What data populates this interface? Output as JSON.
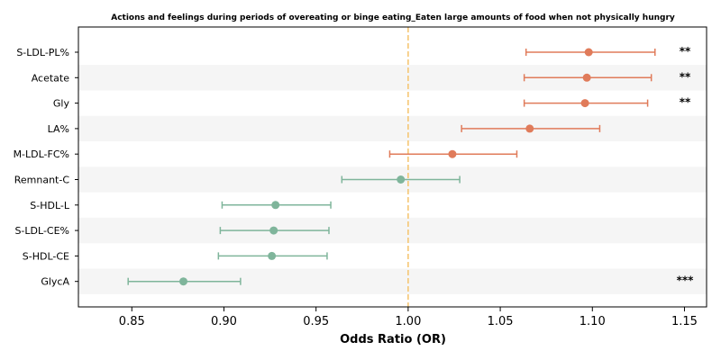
{
  "chart_data": {
    "type": "forest",
    "title": "Actions and feelings during periods of overeating or binge eating_Eaten large amounts of food when not physically hungry",
    "xlabel": "Odds Ratio (OR)",
    "ylabel": "",
    "xlim": [
      0.821,
      1.162
    ],
    "xticks": [
      "0.85",
      "0.90",
      "0.95",
      "1.00",
      "1.05",
      "1.10",
      "1.15"
    ],
    "reference_line": 1.0,
    "colors": {
      "positive": "#e07b5a",
      "negative": "#7fb59b",
      "reference": "#f5c36b",
      "band": "#f5f5f5"
    },
    "rows": [
      {
        "label": "S-LDL-PL%",
        "or": 1.098,
        "lo": 1.064,
        "hi": 1.134,
        "sig": "**"
      },
      {
        "label": "Acetate",
        "or": 1.097,
        "lo": 1.063,
        "hi": 1.132,
        "sig": "**"
      },
      {
        "label": "Gly",
        "or": 1.096,
        "lo": 1.063,
        "hi": 1.13,
        "sig": "**"
      },
      {
        "label": "LA%",
        "or": 1.066,
        "lo": 1.029,
        "hi": 1.104,
        "sig": ""
      },
      {
        "label": "M-LDL-FC%",
        "or": 1.024,
        "lo": 0.99,
        "hi": 1.059,
        "sig": ""
      },
      {
        "label": "Remnant-C",
        "or": 0.996,
        "lo": 0.964,
        "hi": 1.028,
        "sig": ""
      },
      {
        "label": "S-HDL-L",
        "or": 0.928,
        "lo": 0.899,
        "hi": 0.958,
        "sig": ""
      },
      {
        "label": "S-LDL-CE%",
        "or": 0.927,
        "lo": 0.898,
        "hi": 0.957,
        "sig": ""
      },
      {
        "label": "S-HDL-CE",
        "or": 0.926,
        "lo": 0.897,
        "hi": 0.956,
        "sig": ""
      },
      {
        "label": "GlycA",
        "or": 0.878,
        "lo": 0.848,
        "hi": 0.909,
        "sig": "***"
      }
    ]
  }
}
